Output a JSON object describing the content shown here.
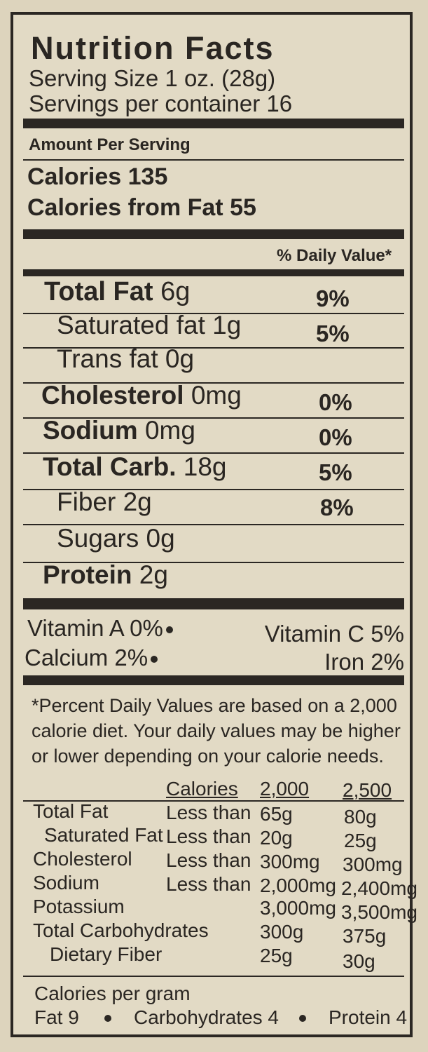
{
  "title": "Nutrition Facts",
  "serving_size": "Serving Size 1 oz. (28g)",
  "servings_per_container": "Servings per container 16",
  "amount_per_serving": "Amount Per Serving",
  "calories": "Calories 135",
  "calories_from_fat": "Calories from Fat 55",
  "daily_value_header": "% Daily Value*",
  "nutrients": [
    {
      "name": "Total Fat",
      "amount": "6g",
      "dv": "9%"
    },
    {
      "name": "Saturated fat",
      "amount": "1g",
      "dv": "5%"
    },
    {
      "name": "Trans fat",
      "amount": "0g",
      "dv": ""
    },
    {
      "name": "Cholesterol",
      "amount": "0mg",
      "dv": "0%"
    },
    {
      "name": "Sodium",
      "amount": "0mg",
      "dv": "0%"
    },
    {
      "name": "Total Carb.",
      "amount": "18g",
      "dv": "5%"
    },
    {
      "name": "Fiber",
      "amount": "2g",
      "dv": "8%"
    },
    {
      "name": "Sugars",
      "amount": "0g",
      "dv": ""
    },
    {
      "name": "Protein",
      "amount": "2g",
      "dv": ""
    }
  ],
  "vitamins": {
    "vitamin_a": "Vitamin A  0%",
    "vitamin_c": "Vitamin C  5%",
    "calcium": "Calcium  2%",
    "iron": "Iron 2%"
  },
  "footnote": [
    "*Percent Daily Values are based on a 2,000",
    "calorie diet. Your daily values may be higher",
    "or lower depending on your calorie needs."
  ],
  "dv_table": {
    "headers": [
      "Calories",
      "2,000",
      "2,500"
    ],
    "rows": [
      [
        "Total Fat",
        "Less than",
        "65g",
        "80g"
      ],
      [
        "Saturated Fat",
        "Less than",
        "20g",
        "25g"
      ],
      [
        "Cholesterol",
        "Less than",
        "300mg",
        "300mg"
      ],
      [
        "Sodium",
        "Less than",
        "2,000mg",
        "2,400mg"
      ],
      [
        "Potassium",
        "",
        "3,000mg",
        "3,500mg"
      ],
      [
        "Total Carbohydrates",
        "",
        "300g",
        "375g"
      ],
      [
        "Dietary Fiber",
        "",
        "25g",
        "30g"
      ]
    ]
  },
  "calories_per_gram": {
    "label": "Calories per gram",
    "fat": "Fat 9",
    "carbs": "Carbohydrates 4",
    "protein": "Protein 4"
  }
}
